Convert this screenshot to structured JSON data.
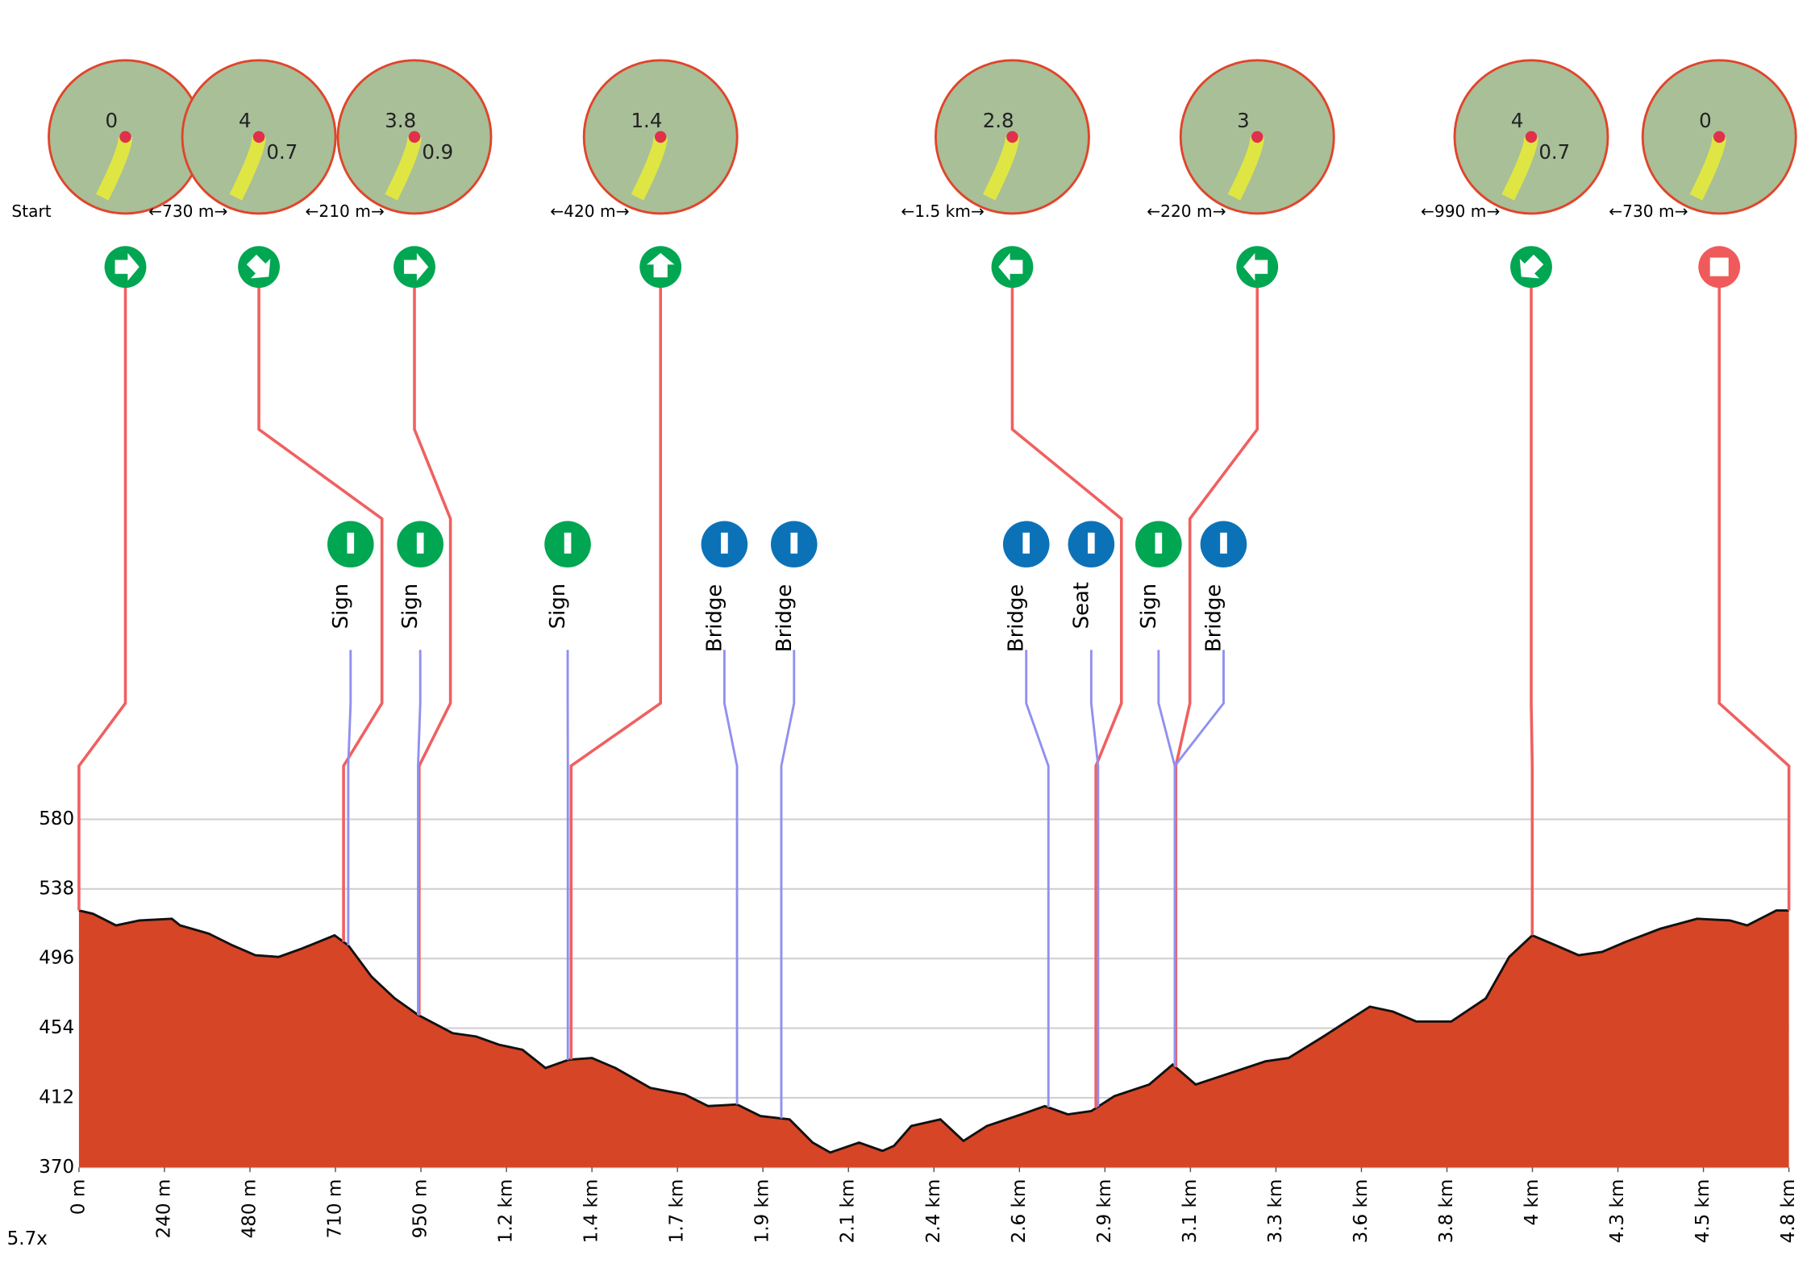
{
  "chart_data": {
    "type": "area",
    "color": "#d64526",
    "zoom_label": "5.7x",
    "x": [
      0,
      39,
      103,
      168,
      258,
      281,
      361,
      426,
      490,
      555,
      619,
      710,
      748,
      813,
      877,
      942,
      1038,
      1103,
      1167,
      1232,
      1296,
      1361,
      1425,
      1490,
      1587,
      1683,
      1748,
      1828,
      1893,
      1974,
      2038,
      2087,
      2167,
      2232,
      2264,
      2312,
      2393,
      2457,
      2522,
      2618,
      2683,
      2747,
      2812,
      2876,
      2973,
      3038,
      3102,
      3199,
      3296,
      3360,
      3457,
      3521,
      3586,
      3650,
      3715,
      3812,
      3908,
      3973,
      4037,
      4102,
      4166,
      4231,
      4296,
      4393,
      4495,
      4586,
      4634,
      4715,
      4750
    ],
    "values": [
      525,
      523,
      516,
      519,
      520,
      516,
      511,
      504,
      498,
      497,
      502,
      510,
      504,
      485,
      472,
      462,
      451,
      449,
      444,
      441,
      430,
      435,
      436,
      430,
      418,
      414,
      407,
      408,
      401,
      399,
      385,
      379,
      385,
      380,
      383,
      395,
      399,
      386,
      395,
      402,
      407,
      402,
      404,
      413,
      420,
      432,
      420,
      427,
      434,
      436,
      449,
      458,
      467,
      464,
      458,
      458,
      472,
      497,
      510,
      504,
      498,
      500,
      506,
      514,
      520,
      519,
      516,
      525,
      525
    ],
    "xlim": [
      0,
      4750
    ],
    "ylim": [
      370,
      580
    ],
    "xticks": [
      {
        "value": 0,
        "label": "0 m"
      },
      {
        "value": 237.5,
        "label": "240 m"
      },
      {
        "value": 475,
        "label": "480 m"
      },
      {
        "value": 712.5,
        "label": "710 m"
      },
      {
        "value": 950,
        "label": "950 m"
      },
      {
        "value": 1187.5,
        "label": "1.2 km"
      },
      {
        "value": 1425,
        "label": "1.4 km"
      },
      {
        "value": 1662.5,
        "label": "1.7 km"
      },
      {
        "value": 1900,
        "label": "1.9 km"
      },
      {
        "value": 2137.5,
        "label": "2.1 km"
      },
      {
        "value": 2375,
        "label": "2.4 km"
      },
      {
        "value": 2612.5,
        "label": "2.6 km"
      },
      {
        "value": 2850,
        "label": "2.9 km"
      },
      {
        "value": 3087.5,
        "label": "3.1 km"
      },
      {
        "value": 3325,
        "label": "3.3 km"
      },
      {
        "value": 3562.5,
        "label": "3.6 km"
      },
      {
        "value": 3800,
        "label": "3.8 km"
      },
      {
        "value": 4037.5,
        "label": "4 km"
      },
      {
        "value": 4275,
        "label": "4.3 km"
      },
      {
        "value": 4512.5,
        "label": "4.5 km"
      },
      {
        "value": 4750,
        "label": "4.8 km"
      }
    ],
    "yticks": [
      370,
      412,
      454,
      496,
      538,
      580
    ],
    "grid": true,
    "maneuvers": [
      {
        "label": "Start",
        "x": 0,
        "map_labels": [
          "0"
        ],
        "color": "#00a651"
      },
      {
        "label": "←730 m→",
        "x": 735,
        "map_labels": [
          "4",
          "0.7"
        ],
        "color": "#00a651"
      },
      {
        "label": "←210 m→",
        "x": 945,
        "map_labels": [
          "3.8",
          "0.9"
        ],
        "color": "#00a651"
      },
      {
        "label": "←420 m→",
        "x": 1367,
        "map_labels": [
          "1.4"
        ],
        "color": "#00a651"
      },
      {
        "label": "←1.5 km→",
        "x": 2825,
        "map_labels": [
          "2.8"
        ],
        "color": "#00a651"
      },
      {
        "label": "←220 m→",
        "x": 3047,
        "map_labels": [
          "3"
        ],
        "color": "#00a651"
      },
      {
        "label": "←990 m→",
        "x": 4037,
        "map_labels": [
          "4",
          "0.7"
        ],
        "color": "#00a651"
      },
      {
        "label": "←730 m→",
        "x": 4750,
        "map_labels": [
          "0"
        ],
        "color": "#f05a5a"
      }
    ],
    "pois": [
      {
        "label": "Sign",
        "x": 748,
        "color": "#00a651"
      },
      {
        "label": "Sign",
        "x": 942,
        "color": "#00a651"
      },
      {
        "label": "Sign",
        "x": 1358,
        "color": "#00a651"
      },
      {
        "label": "Bridge",
        "x": 1828,
        "color": "#0c72b8"
      },
      {
        "label": "Bridge",
        "x": 1951,
        "color": "#0c72b8"
      },
      {
        "label": "Bridge",
        "x": 2693,
        "color": "#0c72b8"
      },
      {
        "label": "Seat",
        "x": 2831,
        "color": "#0c72b8"
      },
      {
        "label": "Sign",
        "x": 3044,
        "color": "#00a651"
      },
      {
        "label": "Bridge",
        "x": 3044,
        "color": "#0c72b8"
      }
    ]
  }
}
